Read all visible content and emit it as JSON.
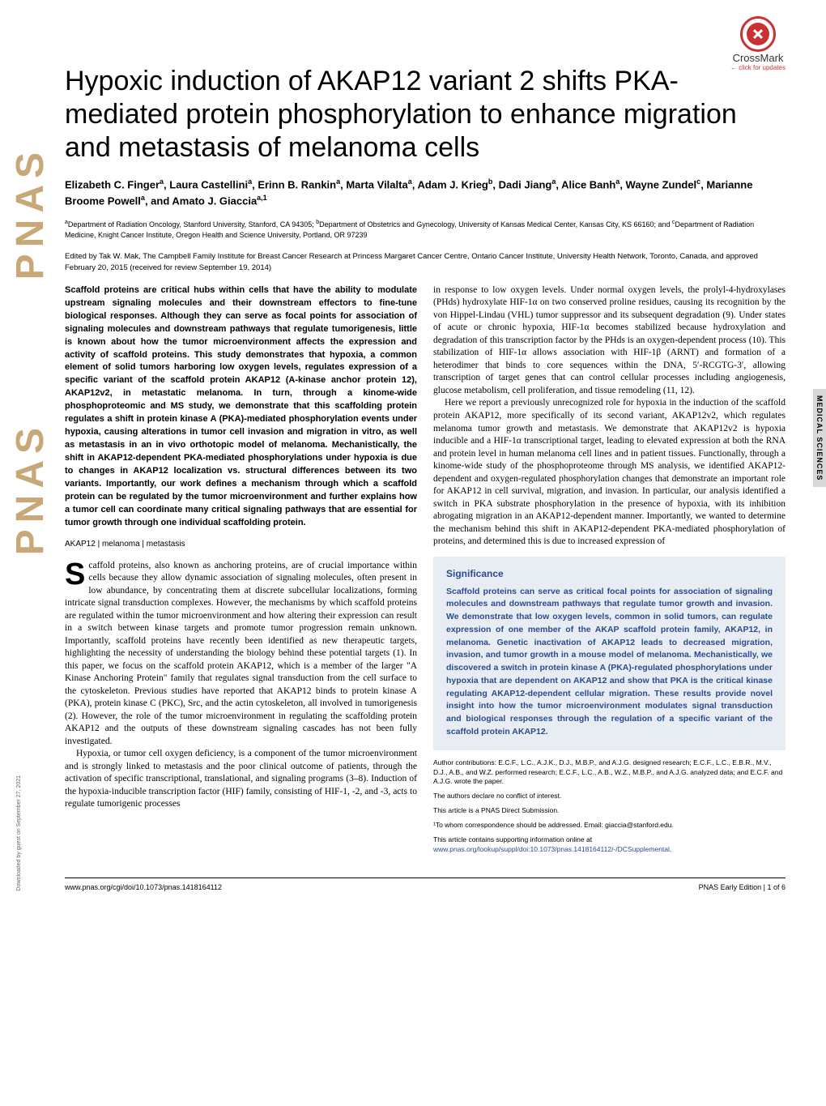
{
  "crossmark": {
    "label": "CrossMark",
    "sub": "← click for updates"
  },
  "pnas_logo": "PNAS",
  "side_tab": "MEDICAL SCIENCES",
  "download_note": "Downloaded by guest on September 27, 2021",
  "title": "Hypoxic induction of AKAP12 variant 2 shifts PKA-mediated protein phosphorylation to enhance migration and metastasis of melanoma cells",
  "authors_html": "Elizabeth C. Finger<sup>a</sup>, Laura Castellini<sup>a</sup>, Erinn B. Rankin<sup>a</sup>, Marta Vilalta<sup>a</sup>, Adam J. Krieg<sup>b</sup>, Dadi Jiang<sup>a</sup>, Alice Banh<sup>a</sup>, Wayne Zundel<sup>c</sup>, Marianne Broome Powell<sup>a</sup>, and Amato J. Giaccia<sup>a,1</sup>",
  "affiliations_html": "<sup>a</sup>Department of Radiation Oncology, Stanford University, Stanford, CA 94305; <sup>b</sup>Department of Obstetrics and Gynecology, University of Kansas Medical Center, Kansas City, KS 66160; and <sup>c</sup>Department of Radiation Medicine, Knight Cancer Institute, Oregon Health and Science University, Portland, OR 97239",
  "edited": "Edited by Tak W. Mak, The Campbell Family Institute for Breast Cancer Research at Princess Margaret Cancer Centre, Ontario Cancer Institute, University Health Network, Toronto, Canada, and approved February 20, 2015 (received for review September 19, 2014)",
  "abstract": "Scaffold proteins are critical hubs within cells that have the ability to modulate upstream signaling molecules and their downstream effectors to fine-tune biological responses. Although they can serve as focal points for association of signaling molecules and downstream pathways that regulate tumorigenesis, little is known about how the tumor microenvironment affects the expression and activity of scaffold proteins. This study demonstrates that hypoxia, a common element of solid tumors harboring low oxygen levels, regulates expression of a specific variant of the scaffold protein AKAP12 (A-kinase anchor protein 12), AKAP12v2, in metastatic melanoma. In turn, through a kinome-wide phosphoproteomic and MS study, we demonstrate that this scaffolding protein regulates a shift in protein kinase A (PKA)-mediated phosphorylation events under hypoxia, causing alterations in tumor cell invasion and migration in vitro, as well as metastasis in an in vivo orthotopic model of melanoma. Mechanistically, the shift in AKAP12-dependent PKA-mediated phosphorylations under hypoxia is due to changes in AKAP12 localization vs. structural differences between its two variants. Importantly, our work defines a mechanism through which a scaffold protein can be regulated by the tumor microenvironment and further explains how a tumor cell can coordinate many critical signaling pathways that are essential for tumor growth through one individual scaffolding protein.",
  "keywords": "AKAP12 | melanoma | metastasis",
  "body_col1_p1": "caffold proteins, also known as anchoring proteins, are of crucial importance within cells because they allow dynamic association of signaling molecules, often present in low abundance, by concentrating them at discrete subcellular localizations, forming intricate signal transduction complexes. However, the mechanisms by which scaffold proteins are regulated within the tumor microenvironment and how altering their expression can result in a switch between kinase targets and promote tumor progression remain unknown. Importantly, scaffold proteins have recently been identified as new therapeutic targets, highlighting the necessity of understanding the biology behind these potential targets (1). In this paper, we focus on the scaffold protein AKAP12, which is a member of the larger \"A Kinase Anchoring Protein\" family that regulates signal transduction from the cell surface to the cytoskeleton. Previous studies have reported that AKAP12 binds to protein kinase A (PKA), protein kinase C (PKC), Src, and the actin cytoskeleton, all involved in tumorigenesis (2). However, the role of the tumor microenvironment in regulating the scaffolding protein AKAP12 and the outputs of these downstream signaling cascades has not been fully investigated.",
  "body_col1_p2": "Hypoxia, or tumor cell oxygen deficiency, is a component of the tumor microenvironment and is strongly linked to metastasis and the poor clinical outcome of patients, through the activation of specific transcriptional, translational, and signaling programs (3–8). Induction of the hypoxia-inducible transcription factor (HIF) family, consisting of HIF-1, -2, and -3, acts to regulate tumorigenic processes",
  "body_col2_p1": "in response to low oxygen levels. Under normal oxygen levels, the prolyl-4-hydroxylases (PHds) hydroxylate HIF-1α on two conserved proline residues, causing its recognition by the von Hippel-Lindau (VHL) tumor suppressor and its subsequent degradation (9). Under states of acute or chronic hypoxia, HIF-1α becomes stabilized because hydroxylation and degradation of this transcription factor by the PHds is an oxygen-dependent process (10). This stabilization of HIF-1α allows association with HIF-1β (ARNT) and formation of a heterodimer that binds to core sequences within the DNA, 5′-RCGTG-3′, allowing transcription of target genes that can control cellular processes including angiogenesis, glucose metabolism, cell proliferation, and tissue remodeling (11, 12).",
  "body_col2_p2": "Here we report a previously unrecognized role for hypoxia in the induction of the scaffold protein AKAP12, more specifically of its second variant, AKAP12v2, which regulates melanoma tumor growth and metastasis. We demonstrate that AKAP12v2 is hypoxia inducible and a HIF-1α transcriptional target, leading to elevated expression at both the RNA and protein level in human melanoma cell lines and in patient tissues. Functionally, through a kinome-wide study of the phosphoproteome through MS analysis, we identified AKAP12-dependent and oxygen-regulated phosphorylation changes that demonstrate an important role for AKAP12 in cell survival, migration, and invasion. In particular, our analysis identified a switch in PKA substrate phosphorylation in the presence of hypoxia, with its inhibition abrogating migration in an AKAP12-dependent manner. Importantly, we wanted to determine the mechanism behind this shift in AKAP12-dependent PKA-mediated phosphorylation of proteins, and determined this is due to increased expression of",
  "significance": {
    "title": "Significance",
    "text": "Scaffold proteins can serve as critical focal points for association of signaling molecules and downstream pathways that regulate tumor growth and invasion. We demonstrate that low oxygen levels, common in solid tumors, can regulate expression of one member of the AKAP scaffold protein family, AKAP12, in melanoma. Genetic inactivation of AKAP12 leads to decreased migration, invasion, and tumor growth in a mouse model of melanoma. Mechanistically, we discovered a switch in protein kinase A (PKA)-regulated phosphorylations under hypoxia that are dependent on AKAP12 and show that PKA is the critical kinase regulating AKAP12-dependent cellular migration. These results provide novel insight into how the tumor microenvironment modulates signal transduction and biological responses through the regulation of a specific variant of the scaffold protein AKAP12."
  },
  "author_contributions": "Author contributions: E.C.F., L.C., A.J.K., D.J., M.B.P., and A.J.G. designed research; E.C.F., L.C., E.B.R., M.V., D.J., A.B., and W.Z. performed research; E.C.F., L.C., A.B., W.Z., M.B.P., and A.J.G. analyzed data; and E.C.F. and A.J.G. wrote the paper.",
  "conflict": "The authors declare no conflict of interest.",
  "submission": "This article is a PNAS Direct Submission.",
  "correspondence": "¹To whom correspondence should be addressed. Email: giaccia@stanford.edu.",
  "supporting": "This article contains supporting information online at ",
  "supporting_link": "www.pnas.org/lookup/suppl/doi:10.1073/pnas.1418164112/-/DCSupplemental",
  "supporting_end": ".",
  "footer": {
    "doi": "www.pnas.org/cgi/doi/10.1073/pnas.1418164112",
    "page": "PNAS Early Edition | 1 of 6"
  },
  "colors": {
    "significance_bg": "#e8edf4",
    "significance_text": "#2a4b8d",
    "link": "#2a4b8d",
    "pnas_logo": "#c8a878",
    "crossmark": "#c83232",
    "sidetab_bg": "#d8d8d8"
  },
  "typography": {
    "title_fontsize": 34,
    "authors_fontsize": 13,
    "affiliations_fontsize": 9,
    "abstract_fontsize": 11,
    "body_fontsize": 11.5,
    "significance_fontsize": 10.5,
    "footer_fontsize": 9
  }
}
